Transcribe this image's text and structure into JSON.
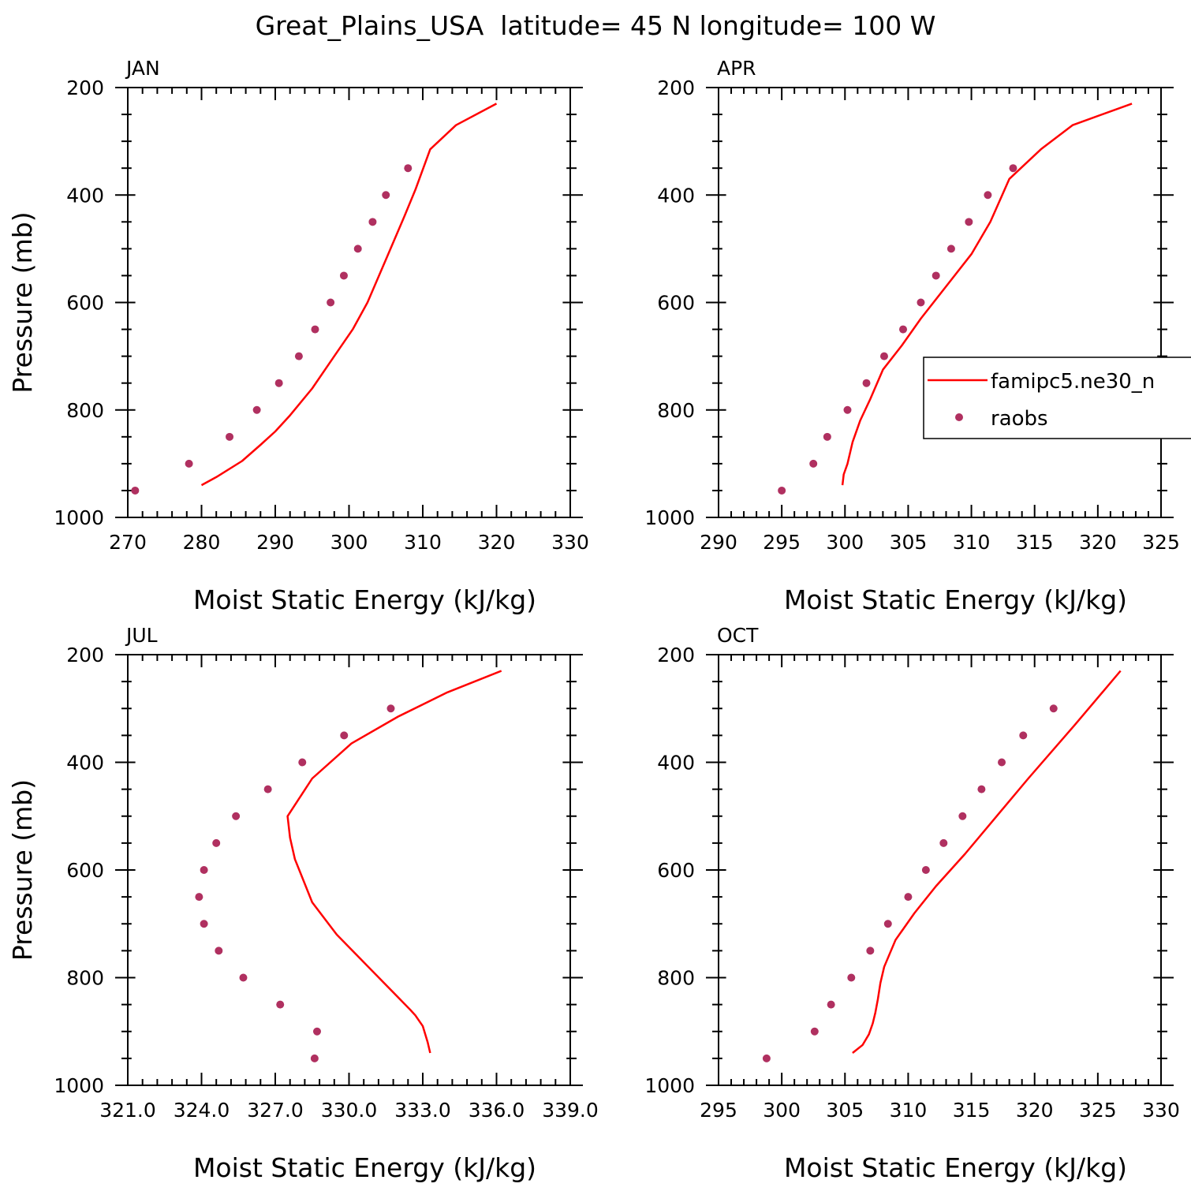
{
  "figure_title": "Great_Plains_USA  latitude= 45 N longitude= 100 W",
  "colors": {
    "model_line": "#ff0000",
    "obs_marker": "#b03060",
    "axis": "#000000"
  },
  "legend": {
    "line_label": "famipc5.ne30_n",
    "marker_label": "raobs",
    "panel": "APR",
    "placement": "right, overlapping panel edge"
  },
  "chart_data": [
    {
      "type": "line",
      "panel_label": "JAN",
      "xlabel": "Moist Static Energy (kJ/kg)",
      "ylabel": "Pressure (mb)",
      "xlim": [
        270,
        330
      ],
      "ylim": [
        1000,
        200
      ],
      "y_inverted": true,
      "xticks": [
        270,
        280,
        290,
        300,
        310,
        320,
        330
      ],
      "xticklabels": [
        "270",
        "280",
        "290",
        "300",
        "310",
        "320",
        "330"
      ],
      "yticks": [
        200,
        400,
        600,
        800,
        1000
      ],
      "series": [
        {
          "kind": "line",
          "x": [
            280,
            282,
            285.5,
            288,
            290,
            292,
            295,
            298,
            300.5,
            302.5,
            305,
            307.5,
            309,
            311,
            314.5,
            320
          ],
          "y": [
            940,
            925,
            895,
            865,
            840,
            810,
            760,
            700,
            650,
            600,
            520,
            440,
            390,
            315,
            270,
            230
          ]
        },
        {
          "kind": "marker",
          "x": [
            271,
            278.3,
            283.8,
            287.5,
            290.5,
            293.2,
            295.4,
            297.5,
            299.3,
            301.2,
            303.2,
            305,
            308
          ],
          "y": [
            950,
            900,
            850,
            800,
            750,
            700,
            650,
            600,
            550,
            500,
            450,
            400,
            350
          ]
        }
      ]
    },
    {
      "type": "line",
      "panel_label": "APR",
      "xlabel": "Moist Static Energy (kJ/kg)",
      "ylabel": "",
      "xlim": [
        290,
        325
      ],
      "ylim": [
        1000,
        200
      ],
      "y_inverted": true,
      "xticks": [
        290,
        295,
        300,
        305,
        310,
        315,
        320,
        325
      ],
      "xticklabels": [
        "290",
        "295",
        "300",
        "305",
        "310",
        "315",
        "320",
        "325"
      ],
      "yticks": [
        200,
        400,
        600,
        800,
        1000
      ],
      "series": [
        {
          "kind": "line",
          "x": [
            299.8,
            299.9,
            300.2,
            300.6,
            301.2,
            302,
            303,
            304.5,
            306,
            308,
            310,
            311.5,
            313,
            315.5,
            318,
            322.7
          ],
          "y": [
            940,
            920,
            900,
            860,
            820,
            780,
            725,
            680,
            630,
            570,
            510,
            450,
            370,
            315,
            270,
            230
          ]
        },
        {
          "kind": "marker",
          "x": [
            295,
            297.5,
            298.6,
            300.2,
            301.7,
            303.1,
            304.6,
            306,
            307.2,
            308.4,
            309.8,
            311.3,
            313.3
          ],
          "y": [
            950,
            900,
            850,
            800,
            750,
            700,
            650,
            600,
            550,
            500,
            450,
            400,
            350
          ]
        }
      ]
    },
    {
      "type": "line",
      "panel_label": "JUL",
      "xlabel": "Moist Static Energy (kJ/kg)",
      "ylabel": "Pressure (mb)",
      "xlim": [
        321,
        339
      ],
      "ylim": [
        1000,
        200
      ],
      "y_inverted": true,
      "xticks": [
        321,
        324,
        327,
        330,
        333,
        336,
        339
      ],
      "xticklabels": [
        "321.0",
        "324.0",
        "327.0",
        "330.0",
        "333.0",
        "336.0",
        "339.0"
      ],
      "yticks": [
        200,
        400,
        600,
        800,
        1000
      ],
      "series": [
        {
          "kind": "line",
          "x": [
            333.3,
            333.2,
            333,
            332.7,
            332.5,
            331,
            329.5,
            328.5,
            327.8,
            327.6,
            327.5,
            328.5,
            330.1,
            332,
            334,
            336.2
          ],
          "y": [
            940,
            920,
            890,
            870,
            860,
            790,
            720,
            660,
            580,
            540,
            500,
            430,
            365,
            315,
            270,
            230
          ]
        },
        {
          "kind": "marker",
          "x": [
            328.6,
            328.7,
            327.2,
            325.7,
            324.7,
            324.1,
            323.9,
            324.1,
            324.6,
            325.4,
            326.7,
            328.1,
            329.8,
            331.7
          ],
          "y": [
            950,
            900,
            850,
            800,
            750,
            700,
            650,
            600,
            550,
            500,
            450,
            400,
            350,
            300
          ]
        }
      ]
    },
    {
      "type": "line",
      "panel_label": "OCT",
      "xlabel": "Moist Static Energy (kJ/kg)",
      "ylabel": "",
      "xlim": [
        295,
        330
      ],
      "ylim": [
        1000,
        200
      ],
      "y_inverted": true,
      "xticks": [
        295,
        300,
        305,
        310,
        315,
        320,
        325,
        330
      ],
      "xticklabels": [
        "295",
        "300",
        "305",
        "310",
        "315",
        "320",
        "325",
        "330"
      ],
      "yticks": [
        200,
        400,
        600,
        800,
        1000
      ],
      "series": [
        {
          "kind": "line",
          "x": [
            305.6,
            306.4,
            306.9,
            307.2,
            307.4,
            307.6,
            307.8,
            308.1,
            309,
            310.5,
            312.2,
            314.5,
            317,
            319.5,
            323.2,
            326.8
          ],
          "y": [
            940,
            925,
            905,
            885,
            865,
            840,
            810,
            780,
            730,
            680,
            630,
            570,
            500,
            430,
            330,
            230
          ]
        },
        {
          "kind": "marker",
          "x": [
            298.8,
            302.6,
            303.9,
            305.5,
            307,
            308.4,
            310,
            311.4,
            312.8,
            314.3,
            315.8,
            317.4,
            319.1,
            321.5
          ],
          "y": [
            950,
            900,
            850,
            800,
            750,
            700,
            650,
            600,
            550,
            500,
            450,
            400,
            350,
            300
          ]
        }
      ]
    }
  ]
}
